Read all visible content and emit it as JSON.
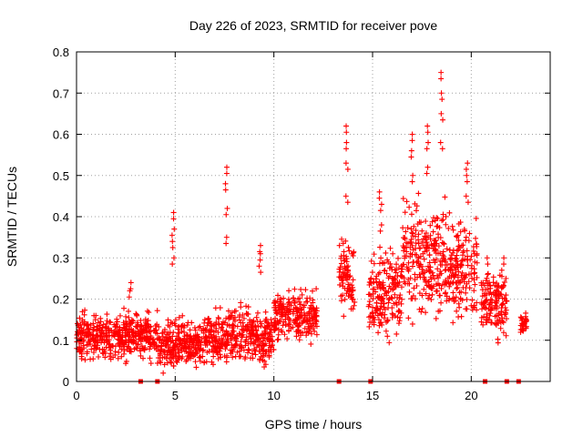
{
  "chart_data": {
    "type": "scatter",
    "title": "Day 226 of 2023, SRMTID for receiver pove",
    "xlabel": "GPS time / hours",
    "ylabel": "SRMTID / TECUs",
    "xlim": [
      0,
      24
    ],
    "ylim": [
      0,
      0.8
    ],
    "xticks": [
      0,
      5,
      10,
      15,
      20
    ],
    "yticks": [
      0,
      0.1,
      0.2,
      0.3,
      0.4,
      0.5,
      0.6,
      0.7,
      0.8
    ],
    "ytick_labels": [
      "0",
      "0.1",
      "0.2",
      "0.3",
      "0.4",
      "0.5",
      "0.6",
      "0.7",
      "0.8"
    ],
    "grid": true,
    "marker": "+",
    "color": "#ff0000",
    "series_profile": [
      {
        "x0": 0.0,
        "x1": 4.1,
        "center": 0.11,
        "spread": 0.05
      },
      {
        "x0": 4.1,
        "x1": 6.5,
        "center": 0.09,
        "spread": 0.05
      },
      {
        "x0": 6.5,
        "x1": 10.0,
        "center": 0.11,
        "spread": 0.06
      },
      {
        "x0": 10.0,
        "x1": 12.2,
        "center": 0.16,
        "spread": 0.05
      },
      {
        "x0": 13.3,
        "x1": 14.1,
        "center": 0.25,
        "spread": 0.08
      },
      {
        "x0": 14.8,
        "x1": 16.5,
        "center": 0.22,
        "spread": 0.09
      },
      {
        "x0": 16.5,
        "x1": 18.9,
        "center": 0.29,
        "spread": 0.12
      },
      {
        "x0": 18.9,
        "x1": 20.3,
        "center": 0.27,
        "spread": 0.1
      },
      {
        "x0": 20.5,
        "x1": 21.8,
        "center": 0.19,
        "spread": 0.07
      },
      {
        "x0": 22.5,
        "x1": 22.8,
        "center": 0.14,
        "spread": 0.02
      }
    ],
    "spikes": [
      {
        "x": 2.7,
        "values": [
          0.22,
          0.24
        ]
      },
      {
        "x": 4.9,
        "values": [
          0.3,
          0.34,
          0.37,
          0.41
        ]
      },
      {
        "x": 7.6,
        "values": [
          0.35,
          0.42,
          0.48,
          0.52
        ]
      },
      {
        "x": 9.3,
        "values": [
          0.28,
          0.31,
          0.33
        ]
      },
      {
        "x": 13.7,
        "values": [
          0.45,
          0.53,
          0.58,
          0.62
        ]
      },
      {
        "x": 15.4,
        "values": [
          0.38,
          0.43,
          0.46
        ]
      },
      {
        "x": 17.0,
        "values": [
          0.5,
          0.56,
          0.6
        ]
      },
      {
        "x": 17.8,
        "values": [
          0.52,
          0.58,
          0.62
        ]
      },
      {
        "x": 18.5,
        "values": [
          0.58,
          0.65,
          0.7,
          0.75
        ]
      },
      {
        "x": 19.8,
        "values": [
          0.45,
          0.5,
          0.53
        ]
      },
      {
        "x": 20.8,
        "values": [
          0.26,
          0.3
        ]
      },
      {
        "x": 21.6,
        "values": [
          0.27,
          0.3
        ]
      }
    ],
    "gap_markers": [
      3.25,
      4.1,
      13.3,
      14.9,
      20.7,
      21.8,
      22.4
    ]
  }
}
